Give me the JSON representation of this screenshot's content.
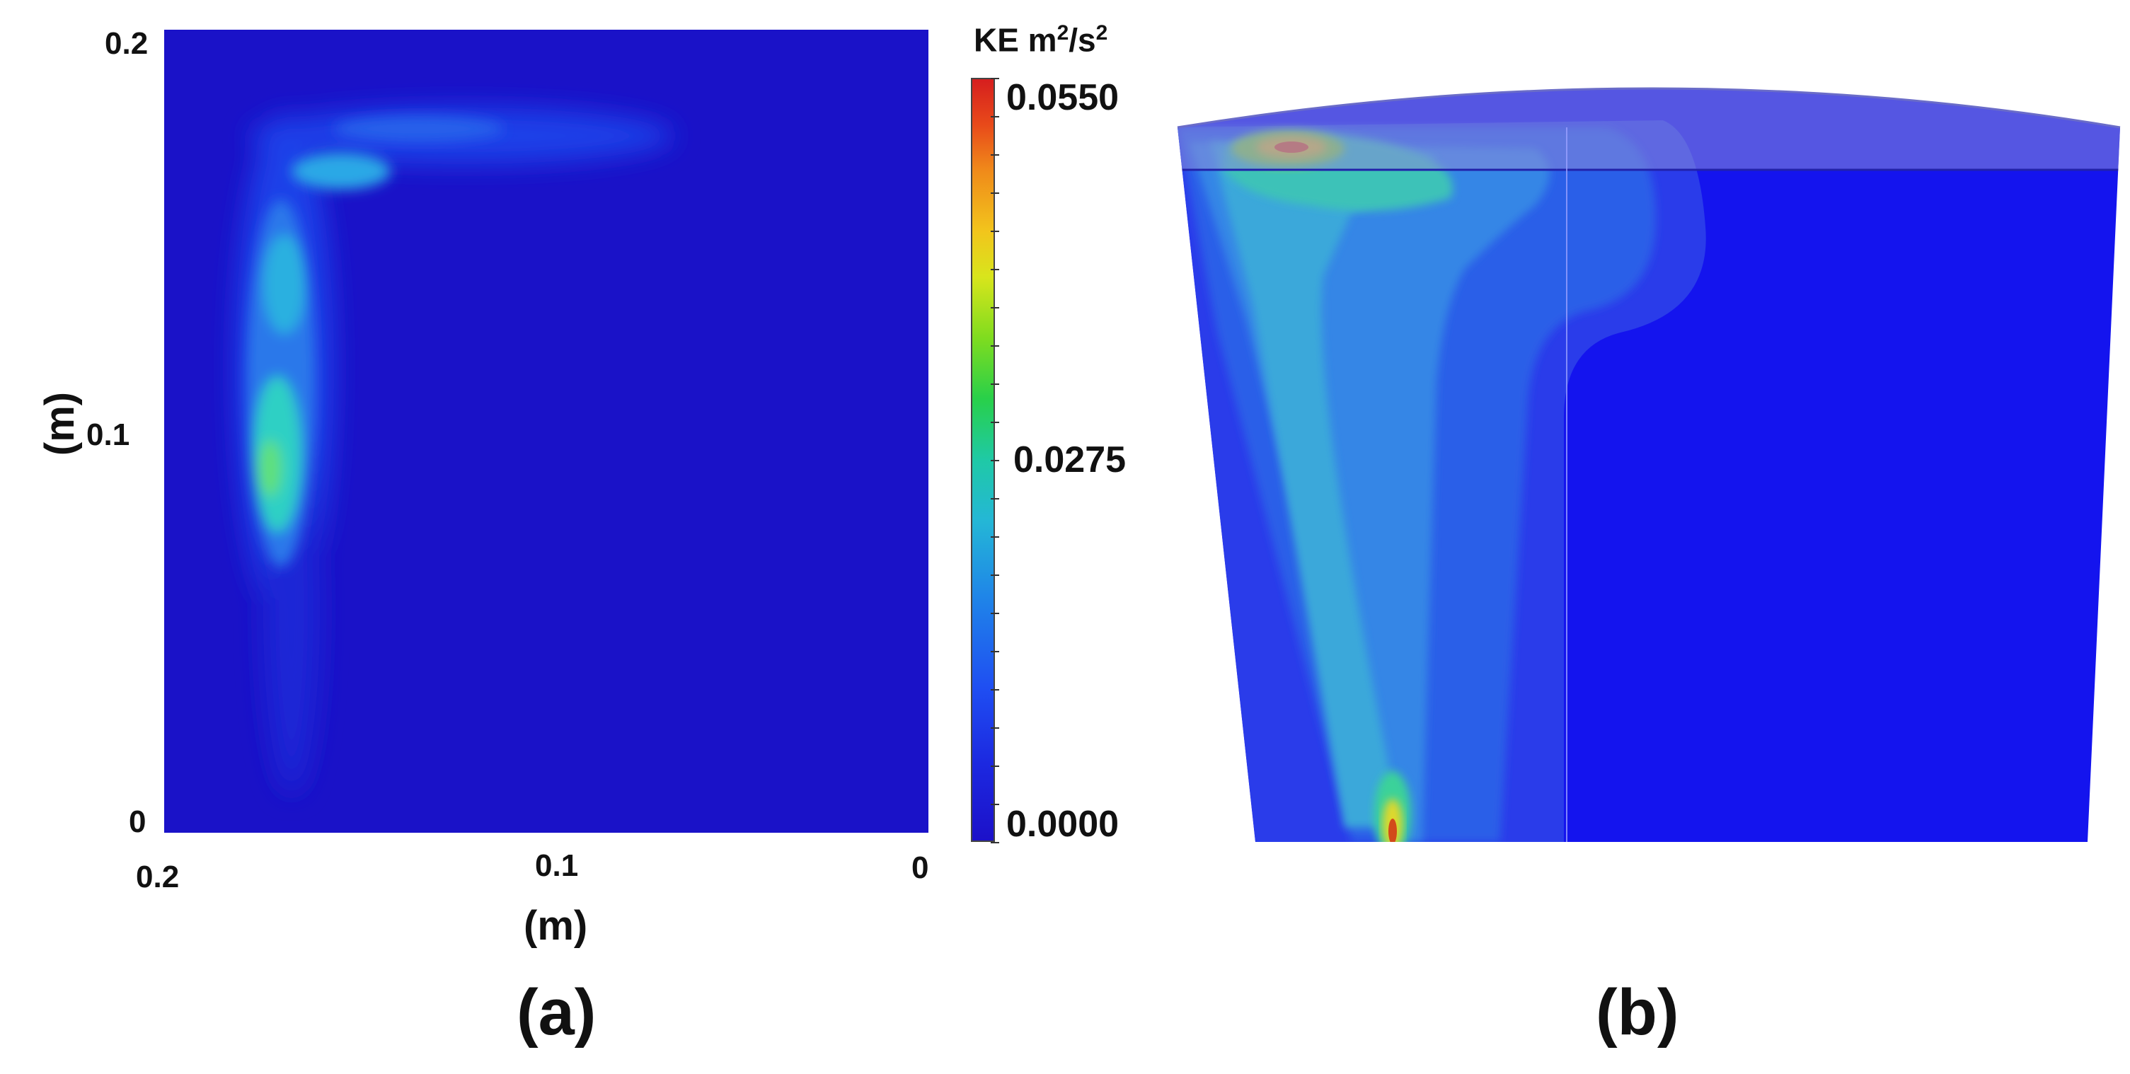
{
  "panel_a": {
    "label": "(a)",
    "y_ticks": [
      "0.2",
      "0.1",
      "0"
    ],
    "x_ticks": [
      "0.2",
      "0.1",
      "0"
    ],
    "y_unit": "(m)",
    "x_unit": "(m)"
  },
  "colorbar": {
    "title_prefix": "KE m",
    "title_sup1": "2",
    "title_mid": "/s",
    "title_sup2": "2",
    "max_label": "0.0550",
    "mid_label": "0.0275",
    "min_label": "0.0000",
    "range": [
      0.0,
      0.055
    ]
  },
  "panel_b": {
    "label": "(b)"
  },
  "colors": {
    "background_blue": "#1a12c8",
    "low": "#1c11c9",
    "high": "#d61e1e"
  }
}
